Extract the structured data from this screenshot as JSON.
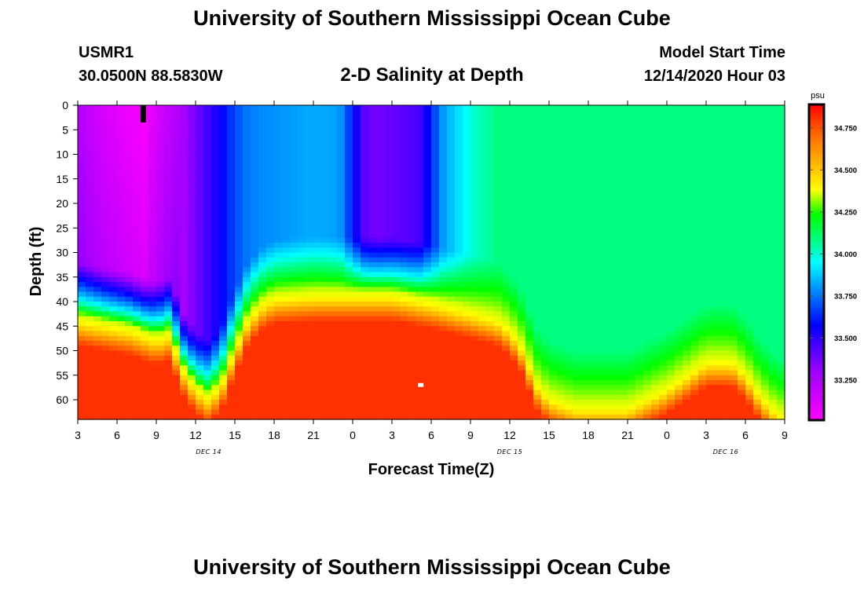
{
  "header": {
    "title": "University of Southern Mississippi Ocean Cube",
    "station_id": "USMR1",
    "coords": "30.0500N 88.5830W",
    "plot_title": "2-D Salinity at Depth",
    "model_start_label": "Model Start Time",
    "model_start_value": "12/14/2020 Hour 03"
  },
  "footer": {
    "title": "University of Southern Mississippi Ocean Cube"
  },
  "chart_data": {
    "type": "heatmap",
    "title": "2-D Salinity at Depth",
    "xlabel": "Forecast Time(Z)",
    "ylabel": "Depth (ft)",
    "x_range_hours": [
      0,
      54
    ],
    "x_tick_labels": [
      "3",
      "6",
      "9",
      "12",
      "15",
      "18",
      "21",
      "0",
      "3",
      "6",
      "9",
      "12",
      "15",
      "18",
      "21",
      "0",
      "3",
      "6",
      "9"
    ],
    "day_labels": [
      {
        "text": "DEC 14",
        "hour": 10
      },
      {
        "text": "DEC 15",
        "hour": 33
      },
      {
        "text": "DEC 16",
        "hour": 49.5
      }
    ],
    "y_range_ft": [
      0,
      64
    ],
    "y_ticks": [
      0,
      5,
      10,
      15,
      20,
      25,
      30,
      35,
      40,
      45,
      50,
      55,
      60
    ],
    "colorbar": {
      "unit": "psu",
      "min": 33.02,
      "max": 34.88,
      "ticks": [
        "33.250",
        "33.500",
        "33.750",
        "34.000",
        "34.250",
        "34.500",
        "34.750"
      ],
      "tick_values": [
        33.25,
        33.5,
        33.75,
        34.0,
        34.25,
        34.5,
        34.75
      ]
    },
    "grid_cols": 90,
    "grid_rows": 64,
    "halocline_depth_ft": [
      [
        0,
        43
      ],
      [
        4,
        45
      ],
      [
        6,
        47
      ],
      [
        7,
        46
      ],
      [
        8,
        53
      ],
      [
        9,
        57
      ],
      [
        10,
        59
      ],
      [
        11,
        56
      ],
      [
        12,
        49
      ],
      [
        13,
        43
      ],
      [
        14,
        40
      ],
      [
        15,
        38.5
      ],
      [
        18,
        38
      ],
      [
        24,
        38
      ],
      [
        27,
        39.5
      ],
      [
        30,
        41.5
      ],
      [
        32,
        43
      ],
      [
        33,
        45
      ],
      [
        34,
        49
      ],
      [
        35,
        56
      ],
      [
        36,
        59
      ],
      [
        38,
        61
      ],
      [
        42,
        61
      ],
      [
        45,
        57
      ],
      [
        48,
        51.5
      ],
      [
        50,
        51.5
      ],
      [
        51,
        54
      ],
      [
        52,
        58
      ],
      [
        53,
        61
      ],
      [
        54,
        63
      ]
    ],
    "surface_salinity_psu": [
      [
        0,
        33.22
      ],
      [
        2,
        33.12
      ],
      [
        4,
        33.06
      ],
      [
        5,
        33.03
      ],
      [
        6,
        33.12
      ],
      [
        8,
        33.25
      ],
      [
        10,
        33.45
      ],
      [
        11,
        33.55
      ],
      [
        12,
        33.65
      ],
      [
        13,
        33.72
      ],
      [
        14,
        33.74
      ],
      [
        18,
        33.79
      ],
      [
        20,
        33.77
      ],
      [
        21,
        33.58
      ],
      [
        22,
        33.38
      ],
      [
        23,
        33.36
      ],
      [
        26,
        33.42
      ],
      [
        27,
        33.6
      ],
      [
        28,
        33.78
      ],
      [
        30,
        33.93
      ],
      [
        32,
        34.0
      ],
      [
        54,
        34.0
      ]
    ],
    "annotations": [
      {
        "kind": "black-marker",
        "hour": 5,
        "depth_top_ft": 0,
        "depth_bottom_ft": 3.5
      },
      {
        "kind": "white-marker",
        "hour": 26.2,
        "depth_ft": 57
      }
    ]
  }
}
